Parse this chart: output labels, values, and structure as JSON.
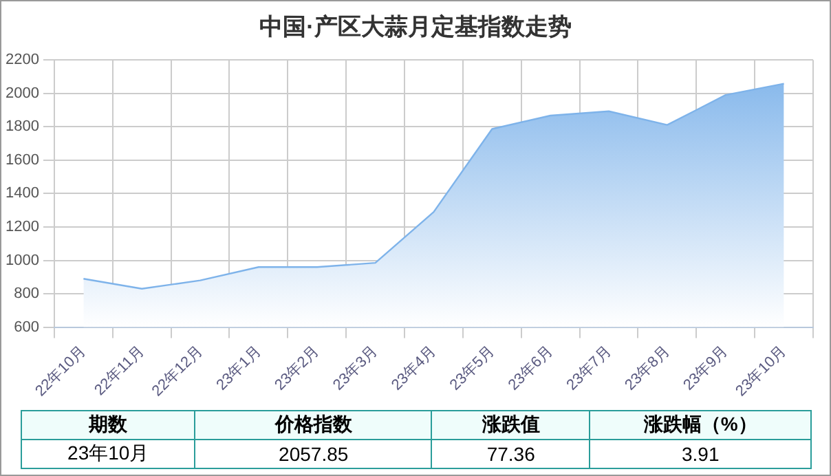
{
  "chart_data": {
    "type": "area",
    "title": "中国·产区大蒜月定基指数走势",
    "categories": [
      "22年10月",
      "22年11月",
      "22年12月",
      "23年1月",
      "23年2月",
      "23年3月",
      "23年4月",
      "23年5月",
      "23年6月",
      "23年7月",
      "23年8月",
      "23年9月",
      "23年10月"
    ],
    "series": [
      {
        "color": "#7eb3ea",
        "values": [
          890,
          830,
          880,
          960,
          960,
          985,
          1290,
          1787,
          1867,
          1893,
          1811,
          1990,
          2058
        ]
      }
    ],
    "ylim": [
      600,
      2200
    ],
    "yticks": [
      600,
      800,
      1000,
      1200,
      1400,
      1600,
      1800,
      2000,
      2200
    ],
    "grid": true,
    "legend": false,
    "marker": "none",
    "annotations": [
      "期数",
      "价格指数",
      "涨跌值",
      "涨跌幅（%）",
      "23年10月",
      "2057.85",
      "77.36",
      "3.91"
    ]
  }
}
